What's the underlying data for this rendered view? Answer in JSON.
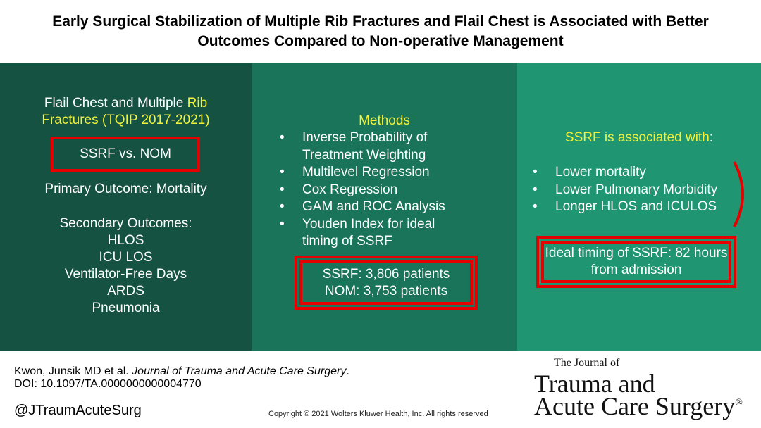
{
  "title": {
    "line1": "Early Surgical Stabilization of Multiple Rib Fractures and Flail Chest is Associated with Better",
    "line2": "Outcomes Compared to Non-operative Management"
  },
  "panel1": {
    "heading_line1_a": "Flail Chest and Multiple ",
    "heading_line1_b": "Rib",
    "heading_line2": "Fractures (TQIP 2017-2021)",
    "comparison": "SSRF vs. NOM",
    "primary_outcome": "Primary Outcome: Mortality",
    "secondary_heading": "Secondary Outcomes:",
    "secondary_outcomes": [
      "HLOS",
      "ICU LOS",
      "Ventilator-Free Days",
      "ARDS",
      "Pneumonia"
    ]
  },
  "panel2": {
    "heading": "Methods",
    "bullet_glyph": "•",
    "methods": [
      {
        "line1": "Inverse Probability of",
        "line2": "Treatment Weighting"
      },
      {
        "line1": "Multilevel Regression",
        "line2": ""
      },
      {
        "line1": "Cox Regression",
        "line2": ""
      },
      {
        "line1": "GAM and ROC Analysis",
        "line2": ""
      },
      {
        "line1": "Youden Index for ideal",
        "line2": "timing of SSRF"
      }
    ],
    "ssrf_count": "SSRF: 3,806 patients",
    "nom_count": "NOM: 3,753 patients"
  },
  "panel3": {
    "heading_a": "SSRF is associated with",
    "heading_b": ":",
    "associations": [
      "Lower mortality",
      "Lower Pulmonary Morbidity",
      "Longer HLOS and ICULOS"
    ],
    "timing_line1": "Ideal timing of SSRF: 82 hours",
    "timing_line2": "from admission"
  },
  "footer": {
    "citation_authors": "Kwon, Junsik MD et al. ",
    "citation_journal": "Journal of Trauma and Acute Care Surgery",
    "citation_end": ".",
    "doi": "DOI: 10.1097/TA.0000000000004770",
    "handle": "@JTraumAcuteSurg",
    "copyright": "Copyright © 2021 Wolters Kluwer Health, Inc. All rights reserved"
  },
  "logo": {
    "small": "The Journal of",
    "line1": "Trauma and",
    "line2": "Acute Care Surgery",
    "mark": "®"
  },
  "colors": {
    "panel1": "#155242",
    "panel2": "#19745a",
    "panel3": "#1f9572",
    "highlight": "#f2f23a",
    "box_border": "#e60000"
  }
}
